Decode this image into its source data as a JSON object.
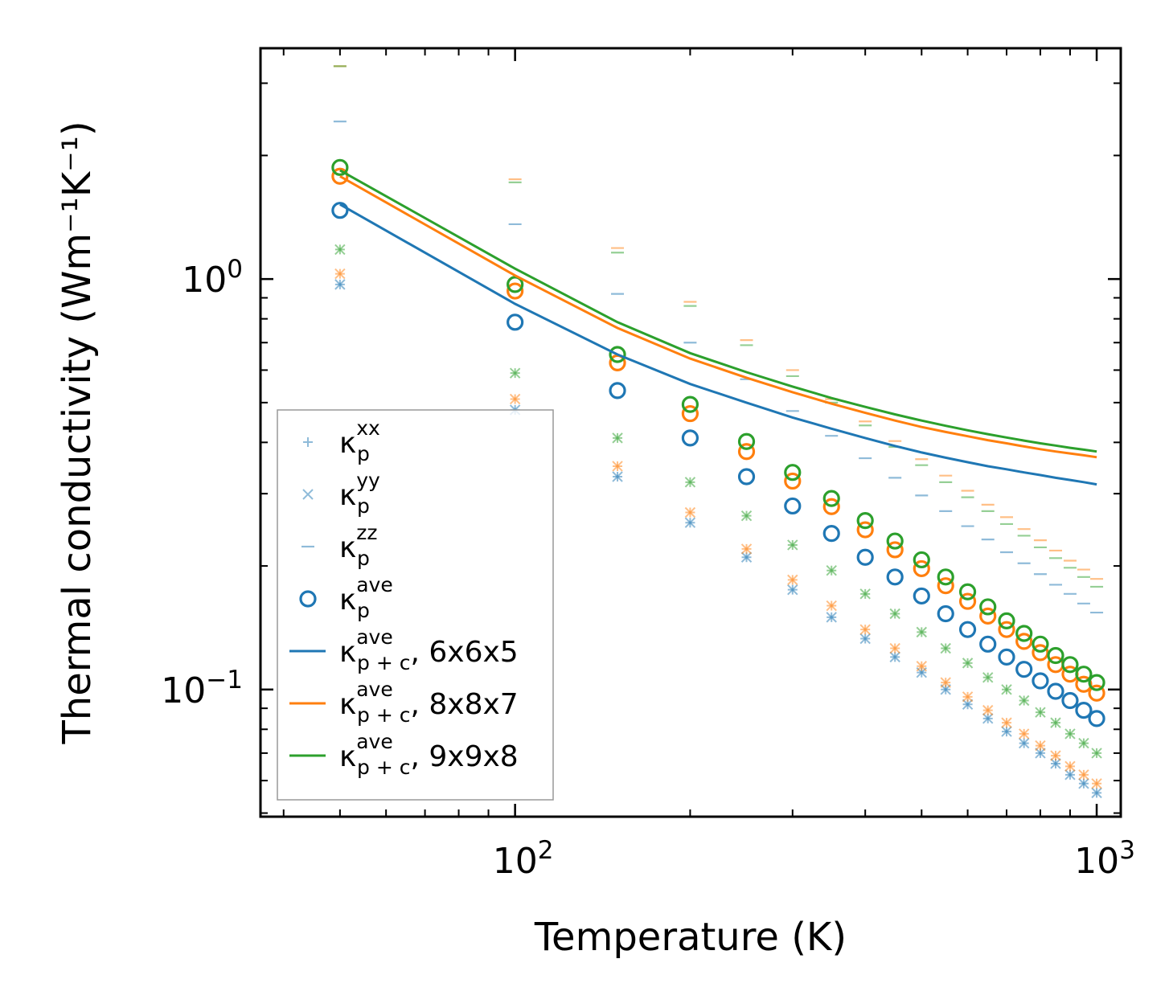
{
  "chart_data": {
    "type": "scatter",
    "scale": {
      "x": "log",
      "y": "log"
    },
    "xlabel": "Temperature (K)",
    "ylabel": "Thermal conductivity (Wm⁻¹K⁻¹)",
    "xlim": [
      36.5,
      1100
    ],
    "ylim": [
      0.049,
      3.65
    ],
    "x_tick_labels": [
      {
        "value": 100,
        "base": "10",
        "exp": "2"
      },
      {
        "value": 1000,
        "base": "10",
        "exp": "3"
      }
    ],
    "y_tick_labels": [
      {
        "value": 0.1,
        "base": "10",
        "exp": "−1"
      },
      {
        "value": 1,
        "base": "10",
        "exp": "0"
      }
    ],
    "x_minor_ticks": [
      40,
      50,
      60,
      70,
      80,
      90,
      200,
      300,
      400,
      500,
      600,
      700,
      800,
      900
    ],
    "y_minor_ticks": [
      0.05,
      0.06,
      0.07,
      0.08,
      0.09,
      0.2,
      0.3,
      0.4,
      0.5,
      0.6,
      0.7,
      0.8,
      0.9,
      2,
      3
    ],
    "x": [
      50,
      100,
      150,
      200,
      250,
      300,
      350,
      400,
      450,
      500,
      550,
      600,
      650,
      700,
      750,
      800,
      850,
      900,
      950,
      1000
    ],
    "series": [
      {
        "name": "p_xx",
        "marker": "plus",
        "color": "#1f77b4",
        "alpha": 0.5,
        "values": [
          0.97,
          0.48,
          0.33,
          0.255,
          0.21,
          0.175,
          0.15,
          0.133,
          0.12,
          0.11,
          0.1,
          0.092,
          0.085,
          0.079,
          0.074,
          0.07,
          0.066,
          0.062,
          0.059,
          0.056
        ]
      },
      {
        "name": "p_xx",
        "marker": "plus",
        "color": "#ff7f0e",
        "alpha": 0.5,
        "values": [
          1.03,
          0.51,
          0.35,
          0.27,
          0.22,
          0.185,
          0.16,
          0.14,
          0.126,
          0.114,
          0.104,
          0.096,
          0.089,
          0.083,
          0.078,
          0.073,
          0.069,
          0.065,
          0.062,
          0.059
        ]
      },
      {
        "name": "p_xx",
        "marker": "plus",
        "color": "#2ca02c",
        "alpha": 0.5,
        "values": [
          1.18,
          0.59,
          0.41,
          0.32,
          0.265,
          0.225,
          0.195,
          0.171,
          0.153,
          0.138,
          0.126,
          0.116,
          0.107,
          0.1,
          0.094,
          0.088,
          0.083,
          0.078,
          0.074,
          0.07
        ]
      },
      {
        "name": "p_yy",
        "marker": "x",
        "color": "#1f77b4",
        "alpha": 0.5,
        "values": [
          0.97,
          0.48,
          0.33,
          0.255,
          0.21,
          0.175,
          0.15,
          0.133,
          0.12,
          0.11,
          0.1,
          0.092,
          0.085,
          0.079,
          0.074,
          0.07,
          0.066,
          0.062,
          0.059,
          0.056
        ]
      },
      {
        "name": "p_yy",
        "marker": "x",
        "color": "#ff7f0e",
        "alpha": 0.5,
        "values": [
          1.03,
          0.51,
          0.35,
          0.27,
          0.22,
          0.185,
          0.16,
          0.14,
          0.126,
          0.114,
          0.104,
          0.096,
          0.089,
          0.083,
          0.078,
          0.073,
          0.069,
          0.065,
          0.062,
          0.059
        ]
      },
      {
        "name": "p_yy",
        "marker": "x",
        "color": "#2ca02c",
        "alpha": 0.5,
        "values": [
          1.18,
          0.59,
          0.41,
          0.32,
          0.265,
          0.225,
          0.195,
          0.171,
          0.153,
          0.138,
          0.126,
          0.116,
          0.107,
          0.1,
          0.094,
          0.088,
          0.083,
          0.078,
          0.074,
          0.07
        ]
      },
      {
        "name": "p_zz",
        "marker": "hline",
        "color": "#1f77b4",
        "alpha": 0.5,
        "values": [
          2.42,
          1.36,
          0.92,
          0.7,
          0.57,
          0.477,
          0.415,
          0.366,
          0.328,
          0.297,
          0.272,
          0.25,
          0.232,
          0.216,
          0.203,
          0.191,
          0.18,
          0.171,
          0.162,
          0.154
        ]
      },
      {
        "name": "p_zz",
        "marker": "hline",
        "color": "#ff7f0e",
        "alpha": 0.5,
        "values": [
          3.3,
          1.75,
          1.19,
          0.88,
          0.71,
          0.6,
          0.51,
          0.45,
          0.403,
          0.364,
          0.332,
          0.305,
          0.282,
          0.263,
          0.246,
          0.231,
          0.218,
          0.206,
          0.196,
          0.186
        ]
      },
      {
        "name": "p_zz",
        "marker": "hline",
        "color": "#2ca02c",
        "alpha": 0.5,
        "values": [
          3.3,
          1.72,
          1.16,
          0.86,
          0.69,
          0.58,
          0.5,
          0.44,
          0.39,
          0.352,
          0.32,
          0.294,
          0.272,
          0.253,
          0.237,
          0.222,
          0.209,
          0.198,
          0.188,
          0.178
        ]
      },
      {
        "name": "p_ave",
        "marker": "circle",
        "color": "#1f77b4",
        "alpha": 1,
        "values": [
          1.47,
          0.785,
          0.535,
          0.41,
          0.33,
          0.28,
          0.24,
          0.21,
          0.188,
          0.169,
          0.153,
          0.14,
          0.129,
          0.12,
          0.112,
          0.105,
          0.099,
          0.094,
          0.089,
          0.085
        ]
      },
      {
        "name": "p_ave",
        "marker": "circle",
        "color": "#ff7f0e",
        "alpha": 1,
        "values": [
          1.78,
          0.935,
          0.625,
          0.47,
          0.38,
          0.322,
          0.279,
          0.245,
          0.219,
          0.197,
          0.179,
          0.164,
          0.151,
          0.14,
          0.131,
          0.123,
          0.115,
          0.109,
          0.103,
          0.098
        ]
      },
      {
        "name": "p_ave",
        "marker": "circle",
        "color": "#2ca02c",
        "alpha": 1,
        "values": [
          1.87,
          0.97,
          0.655,
          0.495,
          0.402,
          0.338,
          0.292,
          0.258,
          0.23,
          0.207,
          0.188,
          0.173,
          0.159,
          0.147,
          0.137,
          0.129,
          0.121,
          0.115,
          0.109,
          0.104
        ]
      },
      {
        "name": "p+c_ave 6x6x5",
        "marker": "line",
        "color": "#1f77b4",
        "alpha": 1,
        "values": [
          1.52,
          0.87,
          0.655,
          0.555,
          0.5,
          0.46,
          0.432,
          0.41,
          0.392,
          0.378,
          0.367,
          0.358,
          0.35,
          0.344,
          0.338,
          0.333,
          0.328,
          0.324,
          0.32,
          0.316
        ]
      },
      {
        "name": "p+c_ave 8x8x7",
        "marker": "line",
        "color": "#ff7f0e",
        "alpha": 1,
        "values": [
          1.78,
          1.02,
          0.76,
          0.64,
          0.575,
          0.53,
          0.497,
          0.472,
          0.452,
          0.436,
          0.424,
          0.414,
          0.405,
          0.398,
          0.391,
          0.385,
          0.38,
          0.376,
          0.372,
          0.368
        ]
      },
      {
        "name": "p+c_ave 9x9x8",
        "marker": "line",
        "color": "#2ca02c",
        "alpha": 1,
        "values": [
          1.84,
          1.06,
          0.785,
          0.66,
          0.593,
          0.547,
          0.513,
          0.488,
          0.468,
          0.452,
          0.439,
          0.428,
          0.419,
          0.411,
          0.404,
          0.398,
          0.393,
          0.388,
          0.384,
          0.38
        ]
      }
    ],
    "legend": {
      "position": "lower-left",
      "entries": [
        {
          "marker": "plus",
          "color": "#1f77b4",
          "alpha": 0.5,
          "sym": "κ",
          "sub": "p",
          "sup": "xx",
          "tail": ""
        },
        {
          "marker": "x",
          "color": "#1f77b4",
          "alpha": 0.5,
          "sym": "κ",
          "sub": "p",
          "sup": "yy",
          "tail": ""
        },
        {
          "marker": "hline",
          "color": "#1f77b4",
          "alpha": 0.5,
          "sym": "κ",
          "sub": "p",
          "sup": "zz",
          "tail": ""
        },
        {
          "marker": "circle",
          "color": "#1f77b4",
          "alpha": 1,
          "sym": "κ",
          "sub": "p",
          "sup": "ave",
          "tail": ""
        },
        {
          "marker": "line",
          "color": "#1f77b4",
          "alpha": 1,
          "sym": "κ",
          "sub": "p + c",
          "sup": "ave",
          "tail": ", 6x6x5"
        },
        {
          "marker": "line",
          "color": "#ff7f0e",
          "alpha": 1,
          "sym": "κ",
          "sub": "p + c",
          "sup": "ave",
          "tail": ", 8x8x7"
        },
        {
          "marker": "line",
          "color": "#2ca02c",
          "alpha": 1,
          "sym": "κ",
          "sub": "p + c",
          "sup": "ave",
          "tail": ", 9x9x8"
        }
      ]
    }
  }
}
